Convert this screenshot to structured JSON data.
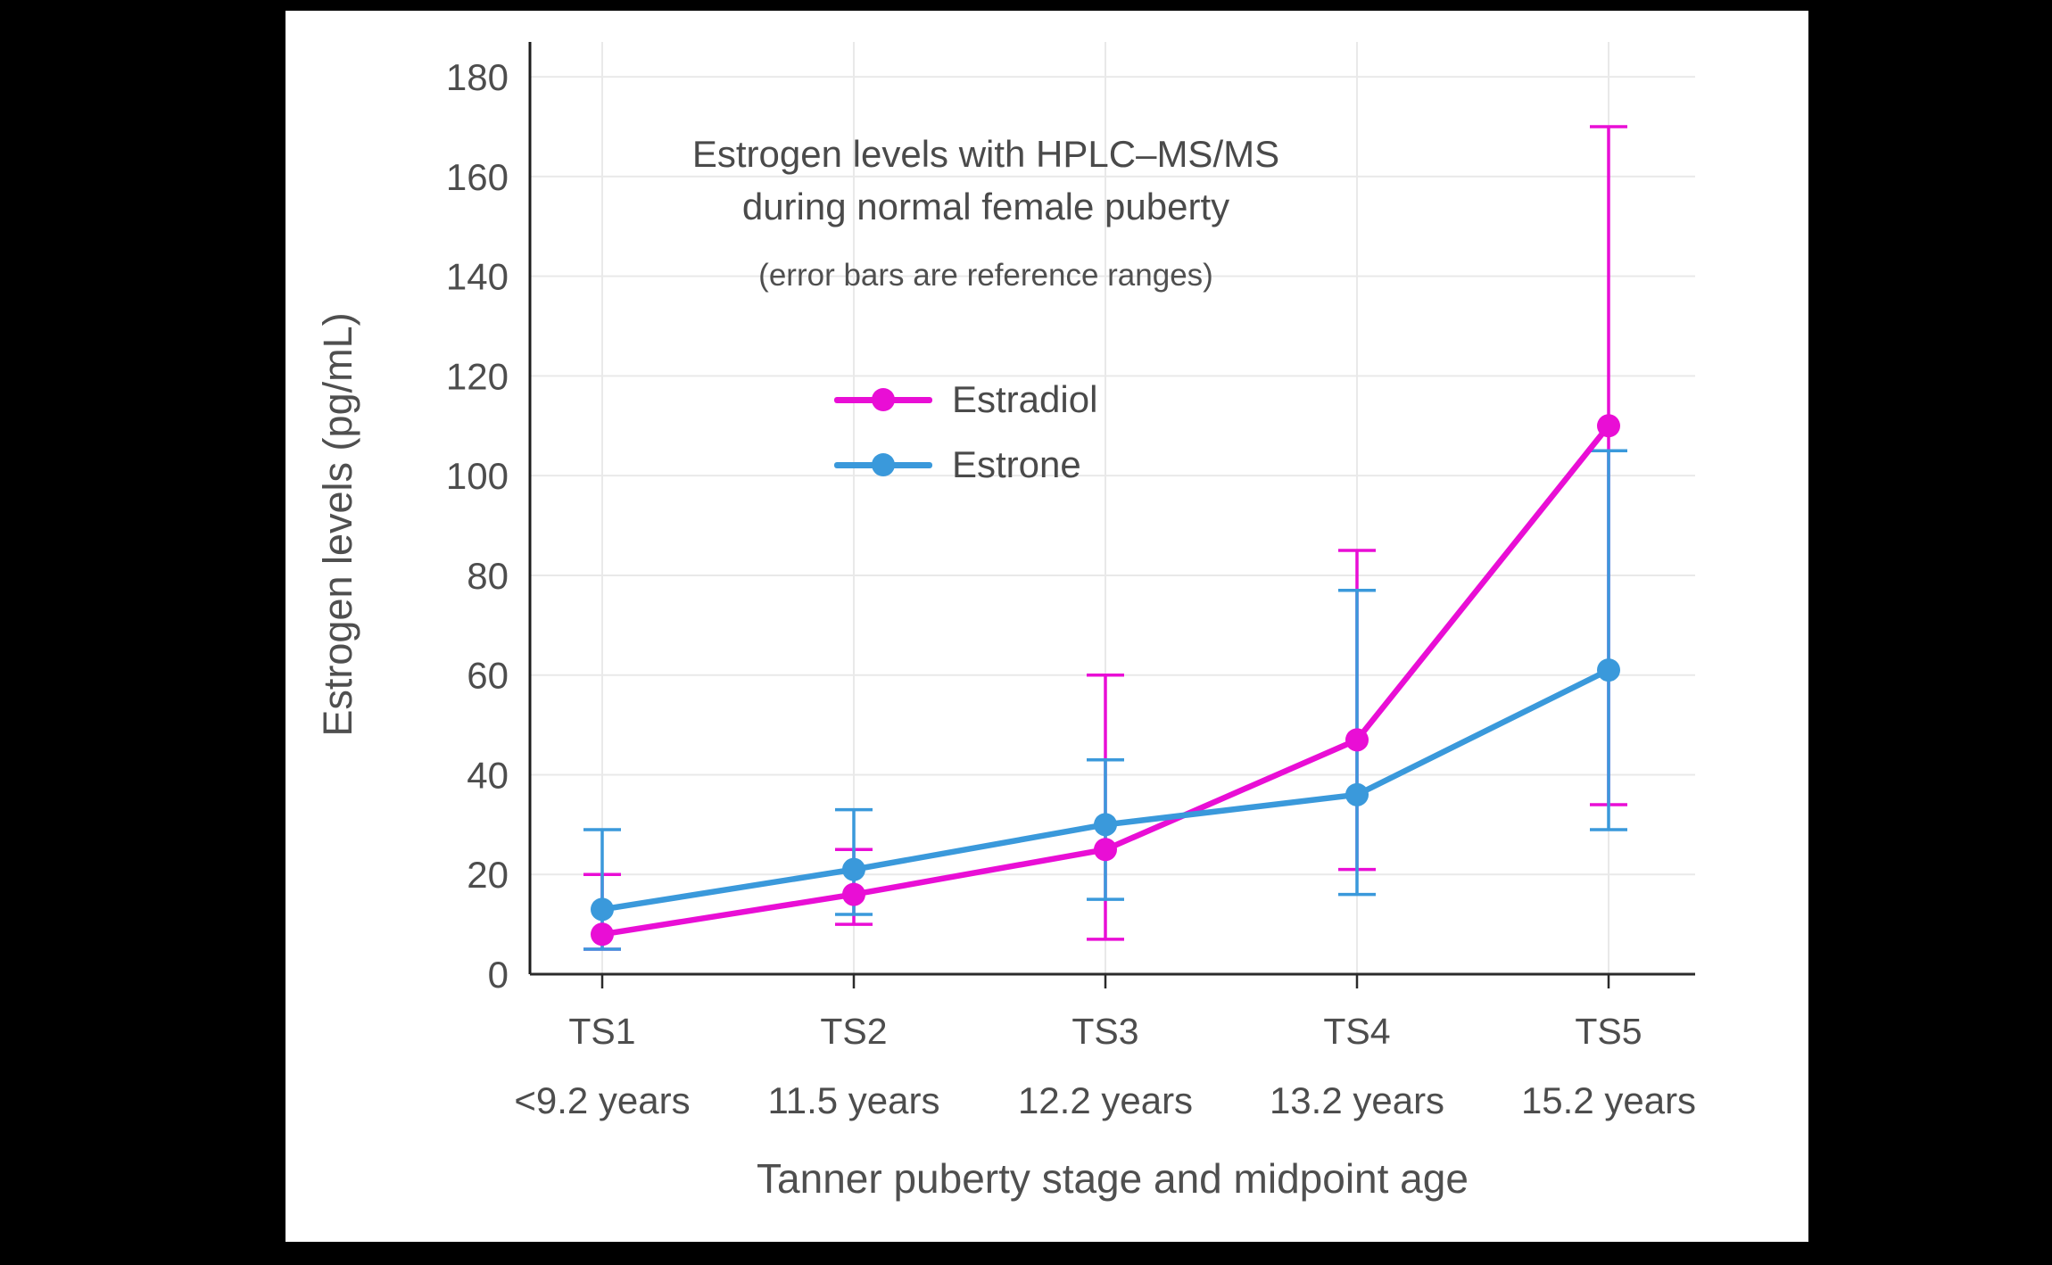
{
  "canvas": {
    "background": "#000000",
    "chart_background": "#ffffff",
    "text_color": "#4a4a4a",
    "grid_color": "#e9e9e9",
    "axis_color": "#2b2b2b"
  },
  "chart_data": {
    "type": "line",
    "title_line1": "Estrogen levels with HPLC–MS/MS",
    "title_line2": "during normal female puberty",
    "subtitle": "(error bars are reference ranges)",
    "xlabel": "Tanner puberty stage and midpoint age",
    "ylabel": "Estrogen levels (pg/mL)",
    "categories": [
      "TS1",
      "TS2",
      "TS3",
      "TS4",
      "TS5"
    ],
    "category_sublabels": [
      "<9.2 years",
      "11.5 years",
      "12.2 years",
      "13.2 years",
      "15.2 years"
    ],
    "y_ticks": [
      0,
      20,
      40,
      60,
      80,
      100,
      120,
      140,
      160,
      180
    ],
    "ylim": [
      0,
      187
    ],
    "grid": true,
    "legend_position": "inside-top-center",
    "error_bars": "reference ranges",
    "series": [
      {
        "name": "Estradiol",
        "color": "#E90ED5",
        "values": [
          8,
          16,
          25,
          47,
          110
        ],
        "error_low": [
          5,
          10,
          7,
          21,
          34
        ],
        "error_high": [
          20,
          25,
          60,
          85,
          170
        ]
      },
      {
        "name": "Estrone",
        "color": "#3A99DB",
        "values": [
          13,
          21,
          30,
          36,
          61
        ],
        "error_low": [
          5,
          12,
          15,
          16,
          29
        ],
        "error_high": [
          29,
          33,
          43,
          77,
          105
        ]
      }
    ]
  }
}
